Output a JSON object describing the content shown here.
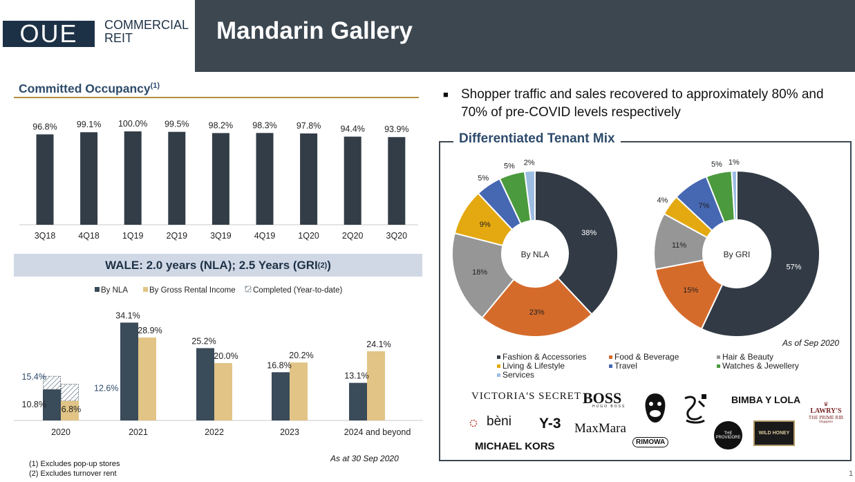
{
  "header": {
    "logo_text": "OUE",
    "logo_sub_line1": "COMMERCIAL",
    "logo_sub_line2": "REIT",
    "title": "Mandarin Gallery"
  },
  "occupancy": {
    "title": "Committed Occupancy",
    "title_sup": "(1)"
  },
  "wale": {
    "title": "WALE: 2.0 years (NLA); 2.5 Years (GRI",
    "title_sup": "(2)",
    "title_end": ")",
    "note": "As at 30 Sep 2020"
  },
  "bullet": {
    "text": "Shopper traffic and sales recovered to approximately 80% and 70% of pre-COVID levels respectively"
  },
  "tenant_mix": {
    "title": "Differentiated Tenant Mix",
    "note": "As of Sep 2020",
    "brands": [
      "VICTORIA'S SECRET",
      "BOSS",
      "HUGO BOSS",
      "BIMBA Y LOLA",
      "bèni",
      "Y-3",
      "MaxMara",
      "RIMOWA",
      "MICHAEL KORS",
      "THE PROVIDORE",
      "WILD HONEY",
      "LAWRY'S",
      "THE PRIME RIB",
      "Singapore"
    ]
  },
  "footnotes": [
    "(1)   Excludes pop-up stores",
    "(2)   Excludes turnover rent"
  ],
  "page_number": "1",
  "chart_data": [
    {
      "type": "bar",
      "title": "Committed Occupancy",
      "categories": [
        "3Q18",
        "4Q18",
        "1Q19",
        "2Q19",
        "3Q19",
        "4Q19",
        "1Q20",
        "2Q20",
        "3Q20"
      ],
      "values": [
        96.8,
        99.1,
        100.0,
        99.5,
        98.2,
        98.3,
        97.8,
        94.4,
        93.9
      ],
      "labels": [
        "96.8%",
        "99.1%",
        "100.0%",
        "99.5%",
        "98.2%",
        "98.3%",
        "97.8%",
        "94.4%",
        "93.9%"
      ],
      "ylim": [
        0,
        100
      ],
      "color": "#333d47",
      "grid": false
    },
    {
      "type": "bar",
      "title": "WALE: 2.0 years (NLA); 2.5 Years (GRI)",
      "categories": [
        "2020",
        "2021",
        "2022",
        "2023",
        "2024 and beyond"
      ],
      "series": [
        {
          "name": "By NLA",
          "color": "#3a4b59",
          "values": [
            10.8,
            34.1,
            25.2,
            16.8,
            13.1
          ],
          "labels": [
            "10.8%",
            "34.1%",
            "25.2%",
            "16.8%",
            "13.1%"
          ]
        },
        {
          "name": "By Gross Rental Income",
          "color": "#e2c486",
          "values": [
            6.8,
            28.9,
            20.0,
            20.2,
            24.1
          ],
          "labels": [
            "6.8%",
            "28.9%",
            "20.0%",
            "20.2%",
            "24.1%"
          ]
        }
      ],
      "completed": {
        "name": "Completed (Year-to-date)",
        "totals": [
          15.4,
          12.6
        ],
        "labels": [
          "15.4%",
          "12.6%"
        ]
      },
      "ylim": [
        0,
        36
      ],
      "legend": "top",
      "grid": false
    },
    {
      "type": "pie",
      "title": "By NLA",
      "categories": [
        "Fashion & Accessories",
        "Food & Beverage",
        "Hair & Beauty",
        "Living & Lifestyle",
        "Travel",
        "Watches & Jewellery",
        "Services"
      ],
      "values": [
        38,
        23,
        18,
        9,
        5,
        5,
        2
      ],
      "labels": [
        "38%",
        "23%",
        "18%",
        "9%",
        "5%",
        "5%",
        "2%"
      ],
      "colors": [
        "#323b45",
        "#d56b2b",
        "#969696",
        "#e4a910",
        "#4667b2",
        "#4b9a3e",
        "#9dbde3"
      ]
    },
    {
      "type": "pie",
      "title": "By GRI",
      "categories": [
        "Fashion & Accessories",
        "Food & Beverage",
        "Hair & Beauty",
        "Living & Lifestyle",
        "Travel",
        "Watches & Jewellery",
        "Services"
      ],
      "values": [
        57,
        15,
        11,
        4,
        7,
        5,
        1
      ],
      "labels": [
        "57%",
        "15%",
        "11%",
        "4%",
        "7%",
        "5%",
        "1%"
      ],
      "colors": [
        "#323b45",
        "#d56b2b",
        "#969696",
        "#e4a910",
        "#4667b2",
        "#4b9a3e",
        "#9dbde3"
      ]
    }
  ]
}
